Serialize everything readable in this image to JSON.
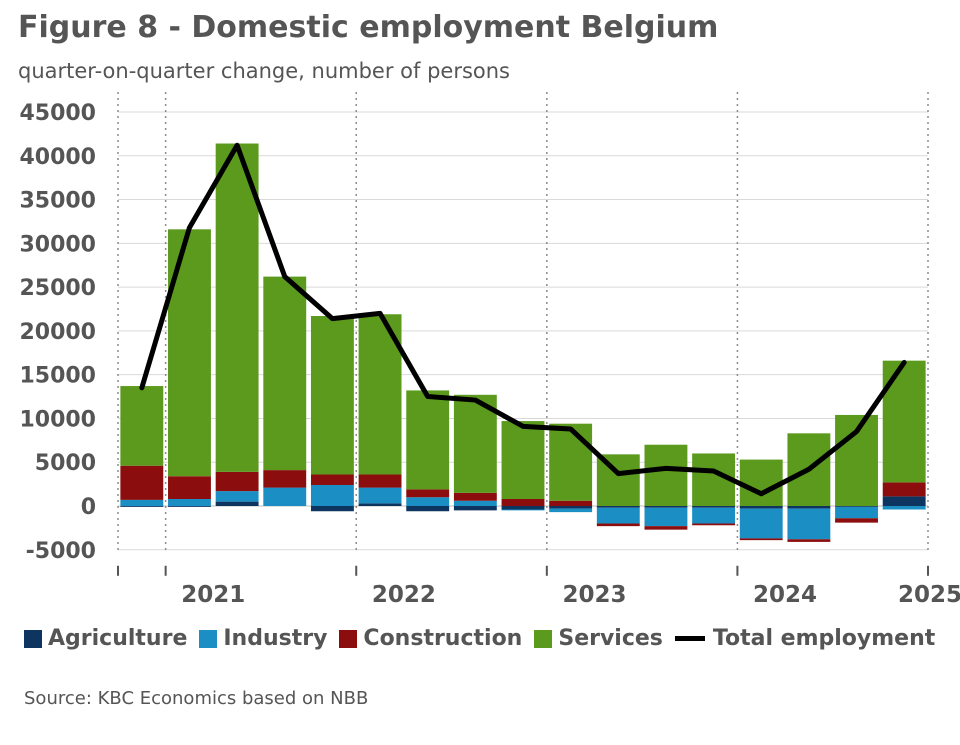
{
  "header": {
    "title": "Figure 8 - Domestic employment Belgium",
    "subtitle": "quarter-on-quarter change, number of persons"
  },
  "footer": {
    "source": "Source: KBC Economics based on NBB"
  },
  "colors": {
    "agriculture": "#0e3560",
    "industry": "#1b8fc4",
    "construction": "#8b0d0d",
    "services": "#5b9a1d",
    "total": "#000000",
    "grid": "#d9d9d9",
    "text": "#555555"
  },
  "chart_data": {
    "type": "bar",
    "stacked": true,
    "title": "Figure 8 - Domestic employment Belgium",
    "subtitle": "quarter-on-quarter change, number of persons",
    "x": [
      "2020Q4",
      "2021Q1",
      "2021Q2",
      "2021Q3",
      "2021Q4",
      "2022Q1",
      "2022Q2",
      "2022Q3",
      "2022Q4",
      "2023Q1",
      "2023Q2",
      "2023Q3",
      "2023Q4",
      "2024Q1",
      "2024Q2",
      "2024Q3",
      "2024Q4"
    ],
    "year_labels": [
      "2021",
      "2022",
      "2023",
      "2024",
      "2025"
    ],
    "year_label_positions": [
      2,
      6,
      10,
      14,
      17
    ],
    "ylim": [
      -5000,
      45000
    ],
    "yticks": [
      -5000,
      0,
      5000,
      10000,
      15000,
      20000,
      25000,
      30000,
      35000,
      40000,
      45000
    ],
    "grid": true,
    "legend_position": "bottom",
    "series": [
      {
        "name": "Agriculture",
        "key": "agriculture",
        "values": [
          -100,
          -100,
          500,
          0,
          -600,
          300,
          -600,
          -500,
          -400,
          -300,
          -200,
          -200,
          -200,
          -300,
          -300,
          -100,
          1100
        ]
      },
      {
        "name": "Industry",
        "key": "industry",
        "values": [
          700,
          800,
          1200,
          2100,
          2400,
          1800,
          1000,
          600,
          -100,
          -400,
          -1800,
          -2100,
          -1800,
          -3400,
          -3500,
          -1300,
          -400
        ]
      },
      {
        "name": "Construction",
        "key": "construction",
        "values": [
          3900,
          2600,
          2200,
          2000,
          1200,
          1500,
          900,
          900,
          800,
          600,
          -300,
          -400,
          -200,
          -200,
          -300,
          -500,
          1600
        ]
      },
      {
        "name": "Services",
        "key": "services",
        "values": [
          9100,
          28200,
          37500,
          22100,
          18100,
          18300,
          11300,
          11200,
          8900,
          8800,
          5900,
          7000,
          6000,
          5300,
          8300,
          10400,
          13900
        ]
      }
    ],
    "line": {
      "name": "Total employment",
      "values": [
        13500,
        31800,
        41200,
        26200,
        21400,
        22000,
        12500,
        12100,
        9100,
        8800,
        3700,
        4300,
        4000,
        1400,
        4200,
        8500,
        16400
      ]
    }
  }
}
